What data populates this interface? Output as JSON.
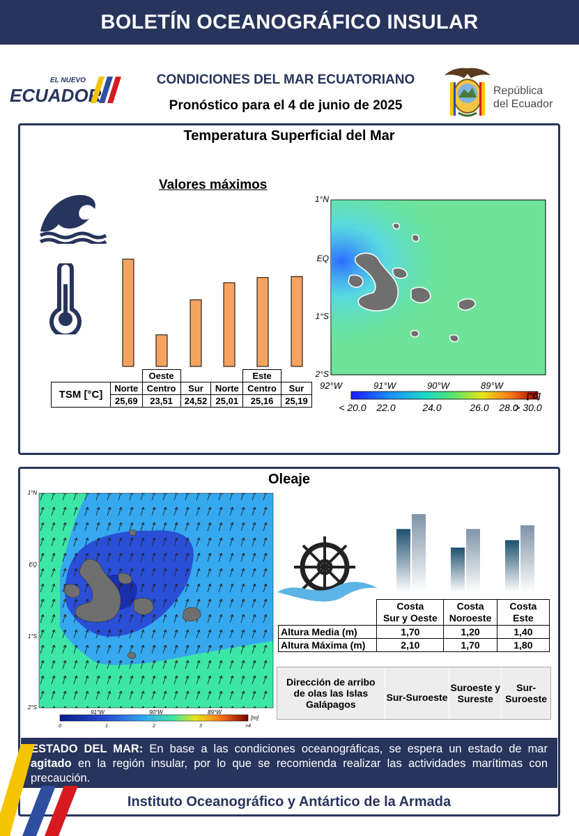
{
  "banner": {
    "title": "BOLETÍN OCEANOGRÁFICO INSULAR"
  },
  "header": {
    "logo_small": "EL NUEVO",
    "logo_main": "ECUADOR",
    "title": "CONDICIONES DEL MAR ECUATORIANO",
    "subtitle": "Pronóstico para el 4 de junio de 2025",
    "republic_line1": "República",
    "republic_line2": "del Ecuador"
  },
  "sst": {
    "title": "Temperatura Superficial del Mar",
    "max_label": "Valores máximos",
    "row_label": "TSM [°C]",
    "groups": [
      "Oeste",
      "Este"
    ],
    "columns": [
      "Norte",
      "Centro",
      "Sur",
      "Norte",
      "Centro",
      "Sur"
    ],
    "values_text": [
      "25,69",
      "23,51",
      "24,52",
      "25,01",
      "25,16",
      "25,19"
    ],
    "values": [
      25.69,
      23.51,
      24.52,
      25.01,
      25.16,
      25.19
    ],
    "bar_color": "#f4a460",
    "map": {
      "lat_labels": [
        "1°N",
        "EQ",
        "1°S",
        "2°S"
      ],
      "lon_labels": [
        "92°W",
        "91°W",
        "90°W",
        "89°W"
      ],
      "unit": "[°C]",
      "scale_labels": [
        "< 20.0",
        "22.0",
        "24.0",
        "26.0",
        "28.0",
        "> 30.0"
      ]
    }
  },
  "waves": {
    "title": "Oleaje",
    "map": {
      "lat_labels": [
        "1°N",
        "EQ",
        "1°S",
        "2°S"
      ],
      "lon_labels": [
        "91°W",
        "90°W",
        "89°W"
      ],
      "unit": "[m]",
      "scale_labels": [
        "0",
        "1",
        "2",
        "3",
        ">4"
      ]
    },
    "columns": [
      {
        "line1": "Costa",
        "line2": "Sur y Oeste"
      },
      {
        "line1": "Costa",
        "line2": "Noroeste"
      },
      {
        "line1": "Costa",
        "line2": "Este"
      }
    ],
    "rows": [
      {
        "label": "Altura Media (m)",
        "values": [
          "1,70",
          "1,20",
          "1,40"
        ]
      },
      {
        "label": "Altura Máxima (m)",
        "values": [
          "2,10",
          "1,70",
          "1,80"
        ]
      }
    ],
    "chart_data": {
      "type": "bar",
      "categories": [
        "Costa Sur y Oeste",
        "Costa Noroeste",
        "Costa Este"
      ],
      "series": [
        {
          "name": "Altura Media (m)",
          "values": [
            1.7,
            1.2,
            1.4
          ]
        },
        {
          "name": "Altura Máxima (m)",
          "values": [
            2.1,
            1.7,
            1.8
          ]
        }
      ],
      "colors": [
        "#1d4f6e",
        "#7f94a8"
      ]
    },
    "direction_label": "Dirección de arribo de olas las Islas Galápagos",
    "directions": [
      "Sur-Suroeste",
      "Suroeste y Sureste",
      "Sur-Suroeste"
    ]
  },
  "estado": {
    "prefix": "ESTADO DEL MAR:",
    "text1": " En base a las condiciones oceanográficas, se espera un estado de mar ",
    "emph": "agitado",
    "text2": " en la región insular, por lo que se recomienda realizar las actividades marítimas con precaución."
  },
  "footer": {
    "text": "Instituto Oceanográfico y Antártico de la  Armada"
  },
  "colors": {
    "navy": "#27345c",
    "sst_bar": "#f4a460"
  }
}
